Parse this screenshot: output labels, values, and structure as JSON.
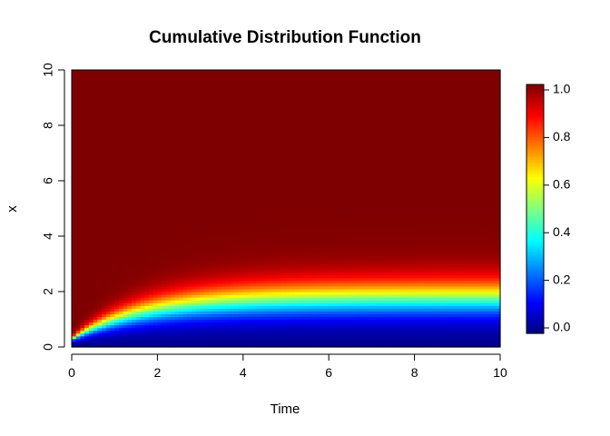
{
  "chart_data": {
    "type": "heatmap",
    "title": "Cumulative Distribution Function",
    "xlabel": "Time",
    "ylabel": "x",
    "xlim": [
      0,
      10
    ],
    "ylim": [
      0,
      10
    ],
    "x_ticks": [
      "0",
      "2",
      "4",
      "6",
      "8",
      "10"
    ],
    "y_ticks": [
      "0",
      "2",
      "4",
      "6",
      "8",
      "10"
    ],
    "colorbar": {
      "range": [
        0,
        1
      ],
      "ticks": [
        "0.0",
        "0.2",
        "0.4",
        "0.6",
        "0.8",
        "1.0"
      ],
      "palette": [
        "#00007f",
        "#0000ff",
        "#007fff",
        "#00ffff",
        "#7fff7f",
        "#ffff00",
        "#ff7f00",
        "#ff0000",
        "#7f0000"
      ]
    },
    "surface": "value = P(X <= x) at each time; the 0.5 contour rises from about x = 0.3 at time 0 to about x = 1.8 for time above 5, and the band from 0 to 1 widens from about 0.1 to about 2.5 in x"
  }
}
